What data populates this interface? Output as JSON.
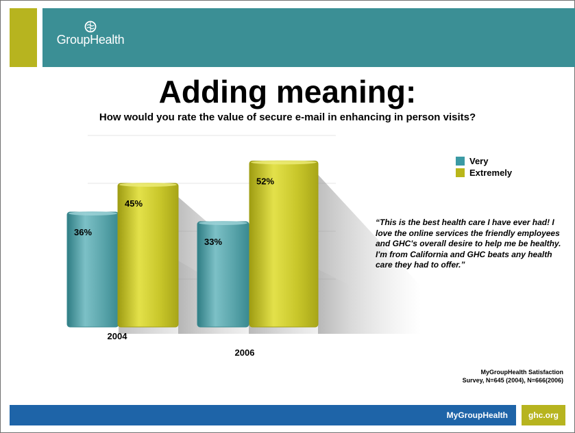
{
  "brand": {
    "name": "GroupHealth",
    "colors": {
      "teal": "#3b8f95",
      "olive": "#b7b41f",
      "blue": "#1e64a8"
    }
  },
  "slide": {
    "title": "Adding meaning:",
    "subtitle": "How would you rate the value of secure e-mail in enhancing in person visits?",
    "quote": "“This is the best health care I have ever had! I love the online services the friendly employees and GHC's overall desire to help me be healthy. I'm from California and GHC beats any health care they had to offer.”",
    "source_line1": "MyGroupHealth Satisfaction",
    "source_line2": "Survey, N=645 (2004), N=666(2006)"
  },
  "footer": {
    "nav_label": "MyGroupHealth",
    "site_label": "ghc.org"
  },
  "chart_data": {
    "type": "bar",
    "categories": [
      "2004",
      "2006"
    ],
    "series": [
      {
        "name": "Very",
        "values": [
          36,
          33
        ],
        "color": "#5fa7ad",
        "labels": [
          "36%",
          "33%"
        ]
      },
      {
        "name": "Extremely",
        "values": [
          45,
          52
        ],
        "color": "#c9c72a",
        "labels": [
          "45%",
          "52%"
        ]
      }
    ],
    "ylim": [
      0,
      60
    ],
    "grid": true,
    "legend": "top-right"
  }
}
